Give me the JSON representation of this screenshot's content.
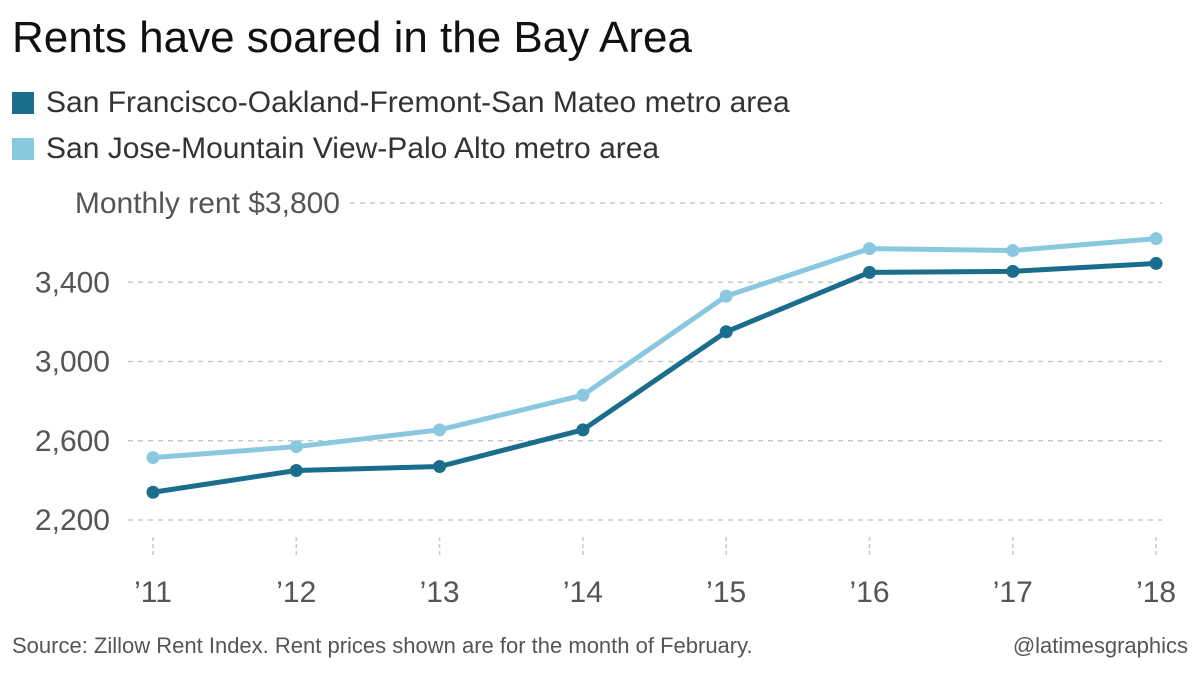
{
  "title": "Rents have soared in the Bay Area",
  "legend": [
    {
      "label": "San Francisco-Oakland-Fremont-San Mateo metro area",
      "color": "#1a6e8c"
    },
    {
      "label": "San Jose-Mountain View-Palo Alto metro area",
      "color": "#8ac8e0"
    }
  ],
  "footer": {
    "source": "Source: Zillow Rent Index. Rent prices shown are for the month of February.",
    "credit": "@latimesgraphics"
  },
  "chart_data": {
    "type": "line",
    "x": [
      "’11",
      "’12",
      "’13",
      "’14",
      "’15",
      "’16",
      "’17",
      "’18"
    ],
    "series": [
      {
        "name": "San Francisco-Oakland-Fremont-San Mateo metro area",
        "color": "#1a6e8c",
        "values": [
          2340,
          2450,
          2470,
          2655,
          3150,
          3450,
          3455,
          3495
        ]
      },
      {
        "name": "San Jose-Mountain View-Palo Alto metro area",
        "color": "#8ac8e0",
        "values": [
          2515,
          2570,
          2655,
          2830,
          3330,
          3570,
          3560,
          3620
        ]
      }
    ],
    "ylabel": "Monthly rent",
    "yticks": [
      2200,
      2600,
      3000,
      3400,
      3800
    ],
    "ytick_labels": [
      "2,200",
      "2,600",
      "3,000",
      "3,400",
      "Monthly rent $3,800"
    ],
    "ylim": [
      2200,
      3800
    ],
    "grid": true
  }
}
